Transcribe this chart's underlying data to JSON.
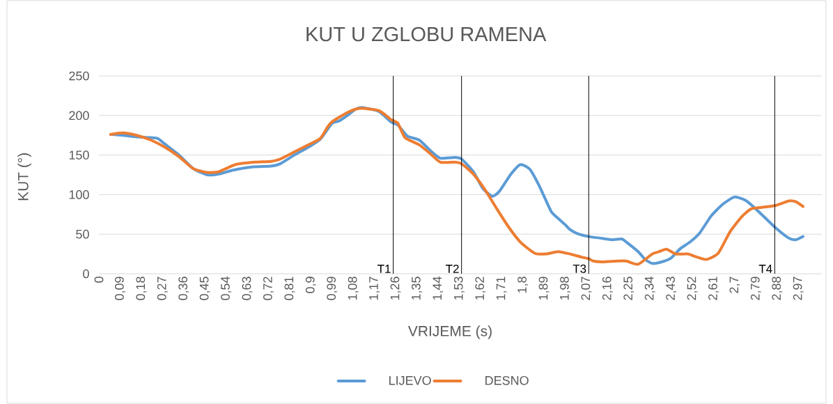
{
  "chart_data": {
    "type": "line",
    "title": "KUT U ZGLOBU RAMENA",
    "xlabel": "VRIJEME (s)",
    "ylabel": "KUT (°)",
    "xlim": [
      0,
      3.07
    ],
    "ylim": [
      0,
      250
    ],
    "xticks": [
      0,
      {
        "value": 0.09,
        "label": "0,09"
      },
      {
        "value": 0.18,
        "label": "0,18"
      },
      {
        "value": 0.27,
        "label": "0,27"
      },
      {
        "value": 0.36,
        "label": "0,36"
      },
      {
        "value": 0.45,
        "label": "0,45"
      },
      {
        "value": 0.54,
        "label": "0,54"
      },
      {
        "value": 0.63,
        "label": "0,63"
      },
      {
        "value": 0.72,
        "label": "0,72"
      },
      {
        "value": 0.81,
        "label": "0,81"
      },
      {
        "value": 0.9,
        "label": "0,9"
      },
      {
        "value": 0.99,
        "label": "0,99"
      },
      {
        "value": 1.08,
        "label": "1,08"
      },
      {
        "value": 1.17,
        "label": "1,17"
      },
      {
        "value": 1.26,
        "label": "1,26"
      },
      {
        "value": 1.35,
        "label": "1,35"
      },
      {
        "value": 1.44,
        "label": "1,44"
      },
      {
        "value": 1.53,
        "label": "1,53"
      },
      {
        "value": 1.62,
        "label": "1,62"
      },
      {
        "value": 1.71,
        "label": "1,71"
      },
      {
        "value": 1.8,
        "label": "1,8"
      },
      {
        "value": 1.89,
        "label": "1,89"
      },
      {
        "value": 1.98,
        "label": "1,98"
      },
      {
        "value": 2.07,
        "label": "2,07"
      },
      {
        "value": 2.16,
        "label": "2,16"
      },
      {
        "value": 2.25,
        "label": "2,25"
      },
      {
        "value": 2.34,
        "label": "2,34"
      },
      {
        "value": 2.43,
        "label": "2,43"
      },
      {
        "value": 2.52,
        "label": "2,52"
      },
      {
        "value": 2.61,
        "label": "2,61"
      },
      {
        "value": 2.7,
        "label": "2,7"
      },
      {
        "value": 2.79,
        "label": "2,79"
      },
      {
        "value": 2.88,
        "label": "2,88"
      },
      {
        "value": 2.97,
        "label": "2,97"
      }
    ],
    "yticks": [
      0,
      50,
      100,
      150,
      200,
      250
    ],
    "grid": "y",
    "legend": "bottom",
    "series": [
      {
        "name": "LIJEVO",
        "color": "#5b9bd5",
        "x": [
          0.05,
          0.1,
          0.16,
          0.22,
          0.25,
          0.28,
          0.34,
          0.4,
          0.46,
          0.51,
          0.57,
          0.65,
          0.73,
          0.77,
          0.83,
          0.89,
          0.94,
          0.99,
          1.02,
          1.06,
          1.09,
          1.12,
          1.19,
          1.24,
          1.27,
          1.31,
          1.36,
          1.41,
          1.45,
          1.51,
          1.54,
          1.59,
          1.63,
          1.67,
          1.7,
          1.75,
          1.79,
          1.83,
          1.87,
          1.92,
          1.95,
          1.98,
          2.0,
          2.03,
          2.08,
          2.13,
          2.18,
          2.22,
          2.24,
          2.29,
          2.32,
          2.35,
          2.39,
          2.43,
          2.47,
          2.51,
          2.55,
          2.6,
          2.65,
          2.7,
          2.75,
          2.8,
          2.87,
          2.93,
          2.96,
          2.99
        ],
        "values": [
          176,
          175,
          173,
          172,
          171,
          164,
          150,
          133,
          125,
          126,
          131,
          135,
          136,
          139,
          150,
          160,
          170,
          190,
          193,
          201,
          208,
          210,
          205,
          192,
          188,
          174,
          169,
          155,
          146,
          147,
          145,
          129,
          108,
          98,
          104,
          126,
          138,
          132,
          111,
          79,
          70,
          62,
          56,
          51,
          47,
          45,
          43,
          44,
          40,
          28,
          18,
          13,
          15,
          20,
          32,
          40,
          51,
          73,
          88,
          97,
          92,
          79,
          59,
          45,
          43,
          47
        ]
      },
      {
        "name": "DESNO",
        "color": "#ed7d31",
        "x": [
          0.05,
          0.1,
          0.16,
          0.22,
          0.28,
          0.34,
          0.4,
          0.46,
          0.51,
          0.58,
          0.66,
          0.73,
          0.77,
          0.83,
          0.89,
          0.94,
          0.97,
          0.99,
          1.05,
          1.09,
          1.12,
          1.19,
          1.24,
          1.27,
          1.3,
          1.36,
          1.41,
          1.45,
          1.51,
          1.54,
          1.59,
          1.64,
          1.69,
          1.74,
          1.79,
          1.85,
          1.9,
          1.95,
          2.0,
          2.05,
          2.08,
          2.1,
          2.14,
          2.2,
          2.24,
          2.29,
          2.35,
          2.38,
          2.41,
          2.45,
          2.5,
          2.54,
          2.58,
          2.63,
          2.68,
          2.73,
          2.77,
          2.82,
          2.87,
          2.93,
          2.96,
          2.99
        ],
        "values": [
          176,
          178,
          175,
          169,
          160,
          148,
          133,
          128,
          129,
          138,
          141,
          142,
          145,
          154,
          163,
          171,
          185,
          192,
          203,
          208,
          209,
          206,
          195,
          190,
          172,
          163,
          151,
          141,
          141,
          139,
          126,
          106,
          82,
          59,
          40,
          26,
          25,
          28,
          25,
          21,
          19,
          16,
          15,
          16,
          16,
          12,
          25,
          28,
          31,
          25,
          25,
          21,
          18,
          26,
          53,
          72,
          82,
          84,
          86,
          92,
          91,
          85
        ]
      }
    ],
    "ref_lines": [
      {
        "axis": "x",
        "value": 1.25,
        "label": "T1",
        "color": "#000000"
      },
      {
        "axis": "x",
        "value": 1.54,
        "label": "T2",
        "color": "#000000"
      },
      {
        "axis": "x",
        "value": 2.08,
        "label": "T3",
        "color": "#000000"
      },
      {
        "axis": "x",
        "value": 2.87,
        "label": "T4",
        "color": "#000000"
      }
    ]
  }
}
